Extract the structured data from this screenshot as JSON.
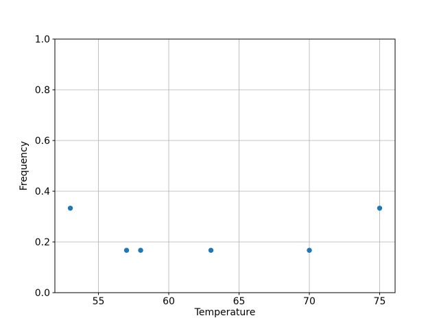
{
  "chart_data": {
    "type": "scatter",
    "xlabel": "Temperature",
    "ylabel": "Frequency",
    "x": [
      53,
      57,
      58,
      63,
      70,
      75
    ],
    "y": [
      0.333,
      0.167,
      0.167,
      0.167,
      0.167,
      0.333
    ],
    "xtick_labels": [
      "55",
      "60",
      "65",
      "70",
      "75"
    ],
    "xtick_values": [
      55,
      60,
      65,
      70,
      75
    ],
    "ytick_labels": [
      "0.0",
      "0.2",
      "0.4",
      "0.6",
      "0.8",
      "1.0"
    ],
    "ytick_values": [
      0.0,
      0.2,
      0.4,
      0.6,
      0.8,
      1.0
    ],
    "xlim": [
      51.9,
      76.1
    ],
    "ylim": [
      0.0,
      1.0
    ],
    "grid": true,
    "marker_color": "#1f77b4",
    "marker_radius": 3.7,
    "grid_color": "#b0b0b0",
    "spine_color": "#000000",
    "tick_color": "#000000",
    "background_color": "#ffffff"
  }
}
